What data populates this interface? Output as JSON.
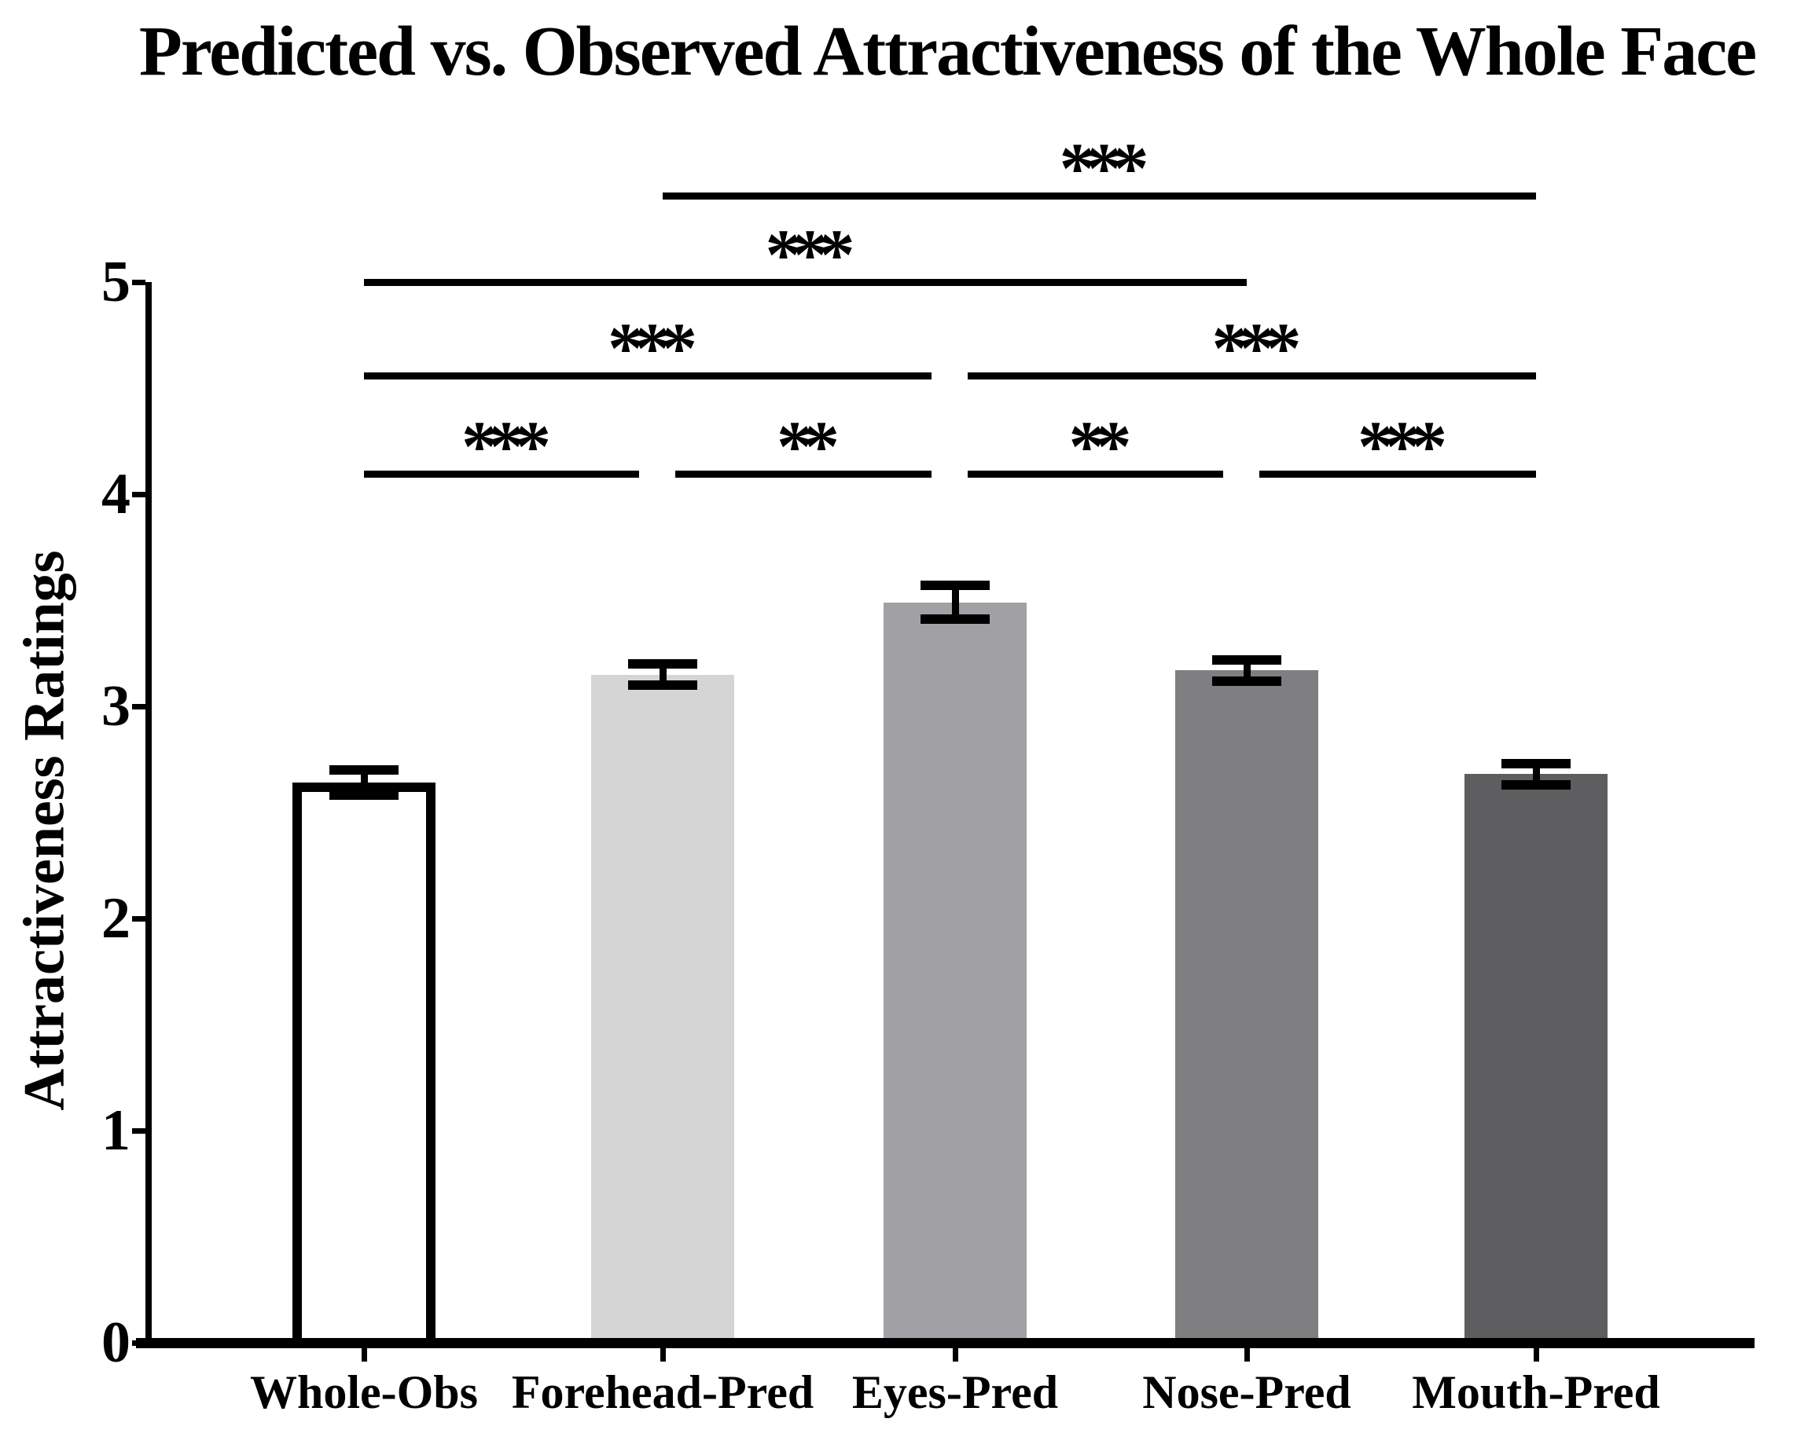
{
  "chart_data": {
    "type": "bar",
    "title": "Predicted vs. Observed Attractiveness of the Whole Face",
    "ylabel": "Attractiveness Ratings",
    "xlabel": "",
    "categories": [
      "Whole-Obs",
      "Forehead-Pred",
      "Eyes-Pred",
      "Nose-Pred",
      "Mouth-Pred"
    ],
    "values": [
      2.64,
      3.15,
      3.49,
      3.17,
      2.68
    ],
    "errors": [
      0.06,
      0.05,
      0.08,
      0.05,
      0.05
    ],
    "bar_colors": [
      "#ffffff",
      "#d5d5d5",
      "#a1a0a5",
      "#7f7f81",
      "#5e5d5f"
    ],
    "bar_outline_color": "#000000",
    "outlined_bars": [
      0
    ],
    "ylim": [
      0,
      5
    ],
    "yticks": [
      0,
      1,
      2,
      3,
      4,
      5
    ],
    "grid": false,
    "legend_position": "none",
    "error_bar_style": "caps-above-and-below",
    "significance": [
      {
        "pair": [
          1,
          4
        ],
        "row": 1,
        "label": "***"
      },
      {
        "pair": [
          0,
          3
        ],
        "row": 2,
        "label": "***"
      },
      {
        "pair": [
          0,
          2
        ],
        "row": 3,
        "label": "***"
      },
      {
        "pair": [
          2,
          4
        ],
        "row": 3,
        "label": "***"
      },
      {
        "pair": [
          0,
          1
        ],
        "row": 4,
        "label": "***"
      },
      {
        "pair": [
          1,
          2
        ],
        "row": 4,
        "label": "**"
      },
      {
        "pair": [
          2,
          3
        ],
        "row": 4,
        "label": "**"
      },
      {
        "pair": [
          3,
          4
        ],
        "row": 4,
        "label": "***"
      }
    ]
  }
}
